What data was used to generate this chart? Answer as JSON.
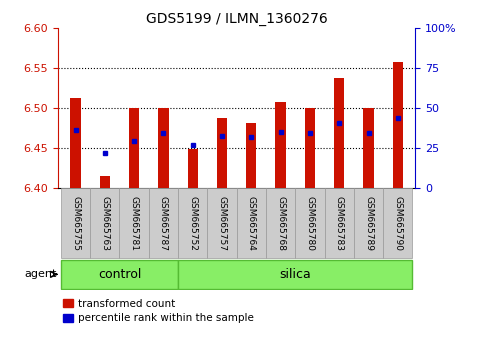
{
  "title": "GDS5199 / ILMN_1360276",
  "samples": [
    "GSM665755",
    "GSM665763",
    "GSM665781",
    "GSM665787",
    "GSM665752",
    "GSM665757",
    "GSM665764",
    "GSM665768",
    "GSM665780",
    "GSM665783",
    "GSM665789",
    "GSM665790"
  ],
  "transformed_count": [
    6.513,
    6.415,
    6.5,
    6.5,
    6.449,
    6.488,
    6.481,
    6.507,
    6.5,
    6.537,
    6.5,
    6.558
  ],
  "percentile_rank": [
    6.472,
    6.444,
    6.459,
    6.469,
    6.453,
    6.465,
    6.464,
    6.47,
    6.469,
    6.481,
    6.469,
    6.488
  ],
  "y_min": 6.4,
  "y_max": 6.6,
  "y_ticks_left": [
    6.4,
    6.45,
    6.5,
    6.55,
    6.6
  ],
  "y_ticks_right_vals": [
    0,
    25,
    50,
    75,
    100
  ],
  "y_ticks_right_labels": [
    "0",
    "25",
    "50",
    "75",
    "100%"
  ],
  "bar_color": "#cc1100",
  "marker_color": "#0000cc",
  "control_count": 4,
  "silica_count": 8,
  "group_labels": [
    "control",
    "silica"
  ],
  "green_color": "#88ee66",
  "green_border": "#55bb33",
  "gray_color": "#cccccc",
  "gray_border": "#999999",
  "agent_label": "agent",
  "legend_items": [
    {
      "label": "transformed count",
      "color": "#cc1100"
    },
    {
      "label": "percentile rank within the sample",
      "color": "#0000cc"
    }
  ],
  "bar_width": 0.35,
  "figsize": [
    4.83,
    3.54
  ],
  "dpi": 100
}
